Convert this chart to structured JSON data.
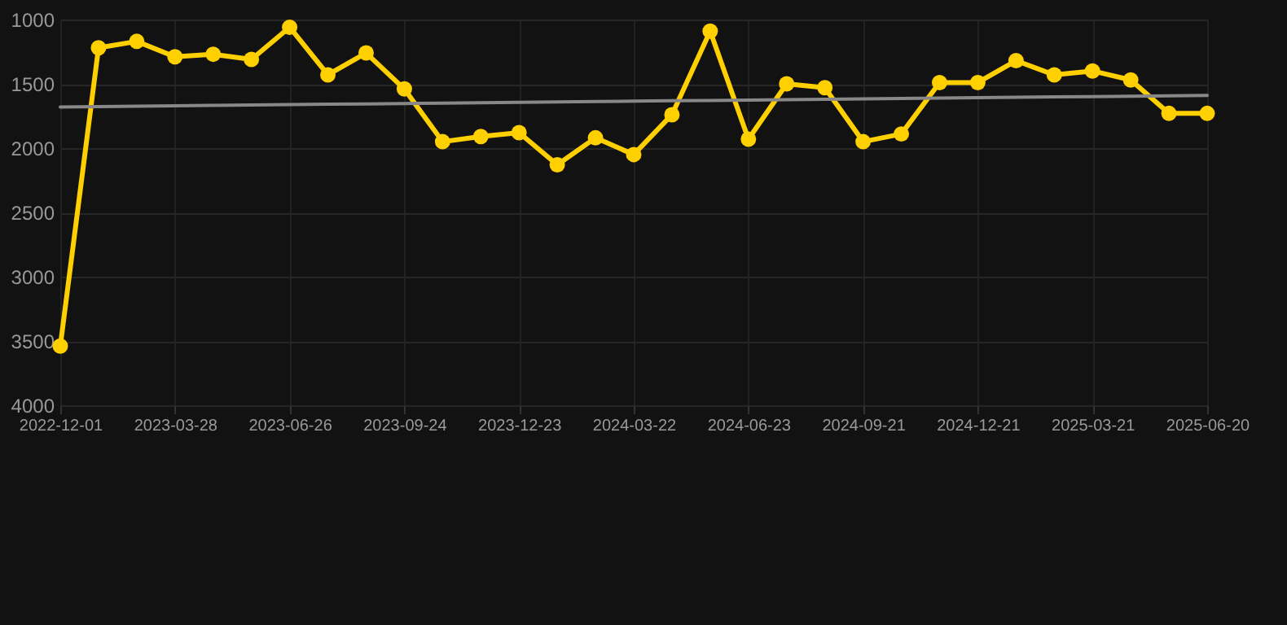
{
  "chart_data": {
    "type": "line",
    "categories": [
      "2022-12-01",
      null,
      null,
      "2023-03-28",
      null,
      null,
      "2023-06-26",
      null,
      null,
      "2023-09-24",
      null,
      null,
      "2023-12-23",
      null,
      null,
      "2024-03-22",
      null,
      null,
      "2024-06-23",
      null,
      null,
      "2024-09-21",
      null,
      null,
      "2024-12-21",
      null,
      null,
      "2025-03-21",
      null,
      null,
      "2025-06-20"
    ],
    "series": [
      {
        "color": "#ffd000",
        "values": [
          3540,
          1220,
          1170,
          1290,
          1270,
          1310,
          1060,
          1430,
          1260,
          1540,
          1950,
          1910,
          1880,
          2130,
          1920,
          2050,
          1740,
          1090,
          1930,
          1500,
          1530,
          1950,
          1890,
          1490,
          1490,
          1320,
          1430,
          1400,
          1470,
          1730,
          1730
        ]
      },
      {
        "color": "#888888",
        "marker": "none",
        "values": [
          1680,
          1677,
          1674,
          1671,
          1668,
          1665,
          1662,
          1659,
          1656,
          1653,
          1650,
          1647,
          1644,
          1641,
          1638,
          1635,
          1632,
          1629,
          1626,
          1623,
          1620,
          1617,
          1614,
          1611,
          1608,
          1605,
          1602,
          1599,
          1596,
          1593,
          1590
        ]
      }
    ],
    "ylim": [
      4000,
      1000
    ],
    "yticks": [
      1000,
      1500,
      2000,
      2500,
      3000,
      3500,
      4000
    ],
    "grid": true,
    "marker": "circle"
  }
}
